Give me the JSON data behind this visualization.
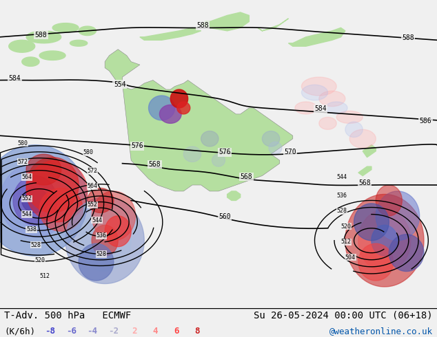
{
  "title_left": "T-Adv. 500 hPa   ECMWF",
  "title_right": "Su 26-05-2024 00:00 UTC (06+18)",
  "unit_label": "(K/6h)",
  "colorbar_values": [
    -8,
    -6,
    -4,
    -2,
    2,
    4,
    6,
    8
  ],
  "neg_colors": [
    "#4444cc",
    "#6666cc",
    "#8888cc",
    "#aaaacc"
  ],
  "pos_colors": [
    "#ffaaaa",
    "#ff8888",
    "#ff4444",
    "#cc2222"
  ],
  "website": "@weatheronline.co.uk",
  "website_color": "#0055aa",
  "bg_color": "#f0f0f0",
  "land_color": "#aaddaa",
  "sea_color": "#f8f8f8",
  "fig_width": 6.34,
  "fig_height": 4.9,
  "dpi": 100,
  "font_size_title": 10,
  "font_size_labels": 9
}
